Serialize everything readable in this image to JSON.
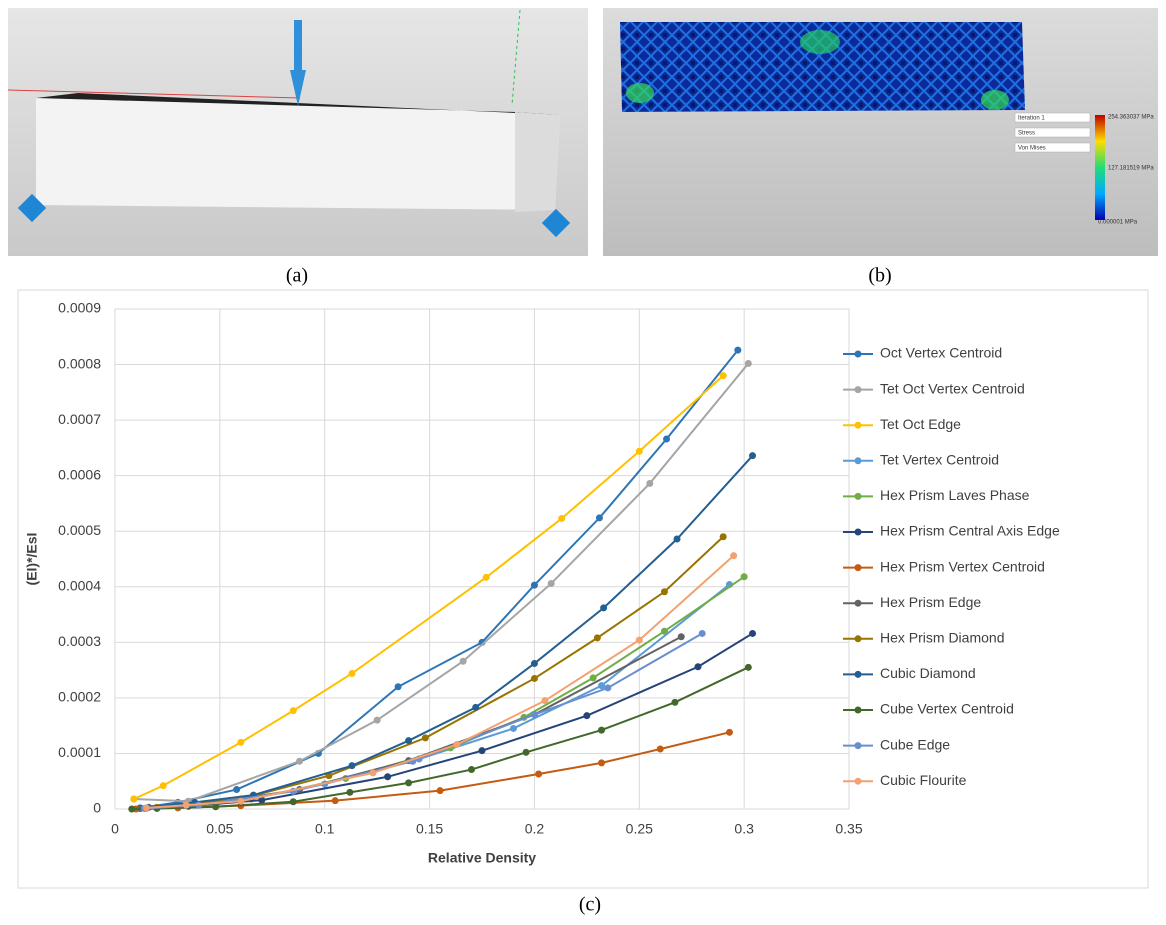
{
  "panel_labels": [
    "(a)",
    "(b)",
    "(c)"
  ],
  "panel_b": {
    "menus": [
      "Iteration 1",
      "Stress",
      "Von Mises"
    ],
    "scale_labels": [
      "254.363037 MPa",
      "127.181519 MPa",
      "0.000001 MPa"
    ]
  },
  "chart_data": {
    "type": "line",
    "xlabel": "Relative Density",
    "ylabel": "(EI)*/EsI",
    "xlim": [
      0,
      0.35
    ],
    "xticks": [
      0,
      0.05,
      0.1,
      0.15,
      0.2,
      0.25,
      0.3,
      0.35
    ],
    "ylim": [
      0,
      0.0009
    ],
    "yticks": [
      0,
      0.0001,
      0.0002,
      0.0003,
      0.0004,
      0.0005,
      0.0006,
      0.0007,
      0.0008,
      0.0009
    ],
    "grid": true,
    "legend": "right",
    "series": [
      {
        "name": "Oct Vertex Centroid",
        "color": "#2e75b6",
        "x": [
          0.012,
          0.03,
          0.058,
          0.097,
          0.135,
          0.175,
          0.2,
          0.231,
          0.263,
          0.297
        ],
        "values": [
          2e-06,
          1.2e-05,
          3.5e-05,
          0.0001,
          0.00022,
          0.0003,
          0.000403,
          0.000524,
          0.000666,
          0.000826
        ]
      },
      {
        "name": "Tet Oct Vertex Centroid",
        "color": "#a5a5a5",
        "x": [
          0.009,
          0.035,
          0.088,
          0.125,
          0.166,
          0.208,
          0.255,
          0.302
        ],
        "values": [
          1.8e-05,
          1.4e-05,
          8.6e-05,
          0.00016,
          0.000266,
          0.000406,
          0.000586,
          0.000802
        ]
      },
      {
        "name": "Tet Oct Edge",
        "color": "#ffc000",
        "x": [
          0.009,
          0.023,
          0.06,
          0.085,
          0.113,
          0.177,
          0.213,
          0.25,
          0.29
        ],
        "values": [
          1.8e-05,
          4.2e-05,
          0.00012,
          0.000177,
          0.000244,
          0.000417,
          0.000523,
          0.000644,
          0.00078
        ]
      },
      {
        "name": "Tet Vertex Centroid",
        "color": "#5b9bd5",
        "x": [
          0.015,
          0.035,
          0.06,
          0.1,
          0.145,
          0.19,
          0.232,
          0.293
        ],
        "values": [
          1e-06,
          6e-06,
          1.5e-05,
          4.5e-05,
          9e-05,
          0.000145,
          0.000222,
          0.000404
        ]
      },
      {
        "name": "Hex Prism Laves Phase",
        "color": "#70ad47",
        "x": [
          0.015,
          0.04,
          0.065,
          0.11,
          0.16,
          0.195,
          0.228,
          0.262,
          0.3
        ],
        "values": [
          2e-06,
          8e-06,
          1.8e-05,
          5.5e-05,
          0.00011,
          0.000165,
          0.000236,
          0.00032,
          0.000418
        ]
      },
      {
        "name": "Hex Prism Central Axis Edge",
        "color": "#264478",
        "x": [
          0.012,
          0.035,
          0.07,
          0.13,
          0.175,
          0.225,
          0.278,
          0.304
        ],
        "values": [
          1e-06,
          5e-06,
          1.6e-05,
          5.8e-05,
          0.000105,
          0.000168,
          0.000256,
          0.000316
        ]
      },
      {
        "name": "Hex Prism Vertex Centroid",
        "color": "#c55a11",
        "x": [
          0.01,
          0.03,
          0.06,
          0.105,
          0.155,
          0.202,
          0.232,
          0.26,
          0.293
        ],
        "values": [
          0,
          2e-06,
          6e-06,
          1.5e-05,
          3.3e-05,
          6.3e-05,
          8.3e-05,
          0.000108,
          0.000138
        ]
      },
      {
        "name": "Hex Prism Edge",
        "color": "#636363",
        "x": [
          0.012,
          0.04,
          0.088,
          0.14,
          0.2,
          0.27
        ],
        "values": [
          1e-06,
          7e-06,
          3.5e-05,
          8.7e-05,
          0.00017,
          0.00031
        ]
      },
      {
        "name": "Hex Prism Diamond",
        "color": "#997300",
        "x": [
          0.02,
          0.06,
          0.102,
          0.148,
          0.2,
          0.23,
          0.262,
          0.29
        ],
        "values": [
          3e-06,
          1.8e-05,
          6e-05,
          0.000128,
          0.000235,
          0.000308,
          0.000391,
          0.00049
        ]
      },
      {
        "name": "Cubic Diamond",
        "color": "#255e91",
        "x": [
          0.016,
          0.038,
          0.066,
          0.113,
          0.14,
          0.172,
          0.2,
          0.233,
          0.268,
          0.304
        ],
        "values": [
          3e-06,
          1.2e-05,
          2.5e-05,
          7.8e-05,
          0.000123,
          0.000183,
          0.000262,
          0.000362,
          0.000486,
          0.000636
        ]
      },
      {
        "name": "Cube Vertex Centroid",
        "color": "#43682b",
        "x": [
          0.008,
          0.02,
          0.048,
          0.085,
          0.112,
          0.14,
          0.17,
          0.196,
          0.232,
          0.267,
          0.302
        ],
        "values": [
          0,
          1e-06,
          4e-06,
          1.3e-05,
          3e-05,
          4.7e-05,
          7.1e-05,
          0.000102,
          0.000142,
          0.000192,
          0.000255
        ]
      },
      {
        "name": "Cube Edge",
        "color": "#698ed0",
        "x": [
          0.014,
          0.04,
          0.085,
          0.142,
          0.2,
          0.235,
          0.28
        ],
        "values": [
          1e-06,
          7e-06,
          3.2e-05,
          8.6e-05,
          0.00017,
          0.000218,
          0.000316
        ]
      },
      {
        "name": "Cubic Flourite",
        "color": "#f4a070",
        "x": [
          0.015,
          0.034,
          0.06,
          0.123,
          0.163,
          0.205,
          0.25,
          0.295
        ],
        "values": [
          2e-06,
          7e-06,
          1.4e-05,
          6.5e-05,
          0.000116,
          0.000195,
          0.000304,
          0.000456
        ]
      }
    ]
  }
}
